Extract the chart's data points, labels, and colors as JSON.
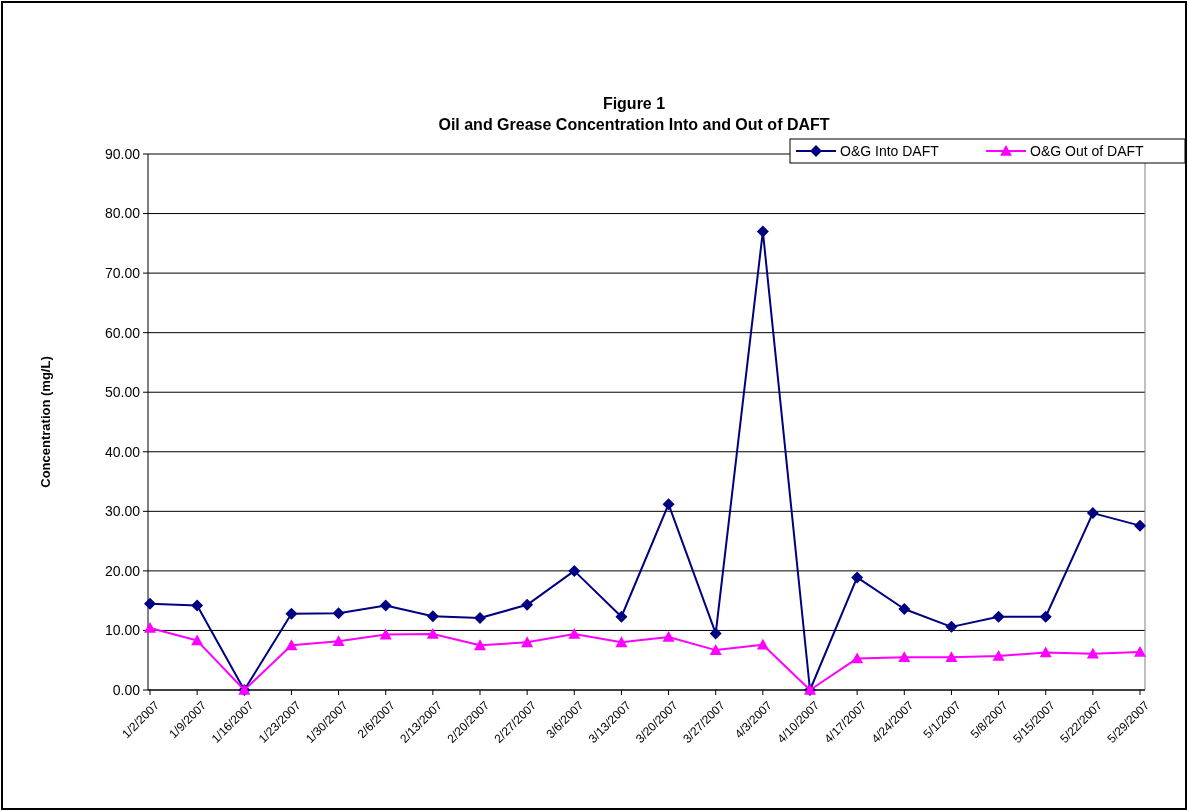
{
  "chart_data": {
    "type": "line",
    "title": "Figure 1",
    "subtitle": "Oil and Grease Concentration Into and Out of DAFT",
    "ylabel": "Concentration (mg/L)",
    "categories": [
      "1/2/2007",
      "1/9/2007",
      "1/16/2007",
      "1/23/2007",
      "1/30/2007",
      "2/6/2007",
      "2/13/2007",
      "2/20/2007",
      "2/27/2007",
      "3/6/2007",
      "3/13/2007",
      "3/20/2007",
      "3/27/2007",
      "4/3/2007",
      "4/10/2007",
      "4/17/2007",
      "4/24/2007",
      "5/1/2007",
      "5/8/2007",
      "5/15/2007",
      "5/22/2007",
      "5/29/2007"
    ],
    "series": [
      {
        "name": "O&G Into DAFT",
        "color": "#000080",
        "marker": "diamond",
        "values": [
          14.5,
          14.2,
          0,
          12.8,
          12.9,
          14.2,
          12.4,
          12.1,
          14.3,
          20.0,
          12.3,
          31.2,
          9.5,
          77.0,
          0,
          18.9,
          13.6,
          10.6,
          12.3,
          12.3,
          29.7,
          27.6
        ]
      },
      {
        "name": "O&G Out of DAFT",
        "color": "#ff00ff",
        "marker": "triangle",
        "values": [
          10.4,
          8.3,
          0,
          7.5,
          8.2,
          9.3,
          9.4,
          7.5,
          8.0,
          9.4,
          8.0,
          8.9,
          6.7,
          7.6,
          0,
          5.3,
          5.5,
          5.5,
          5.7,
          6.3,
          6.1,
          6.4
        ]
      }
    ],
    "ylim": [
      0,
      90
    ],
    "yticks": [
      {
        "value": 0,
        "label": "0.00"
      },
      {
        "value": 10,
        "label": "10.00"
      },
      {
        "value": 20,
        "label": "20.00"
      },
      {
        "value": 30,
        "label": "30.00"
      },
      {
        "value": 40,
        "label": "40.00"
      },
      {
        "value": 50,
        "label": "50.00"
      },
      {
        "value": 60,
        "label": "60.00"
      },
      {
        "value": 70,
        "label": "70.00"
      },
      {
        "value": 80,
        "label": "80.00"
      },
      {
        "value": 90,
        "label": "90.00"
      }
    ],
    "grid": "y",
    "legend": "top right",
    "line_style": "solid"
  }
}
